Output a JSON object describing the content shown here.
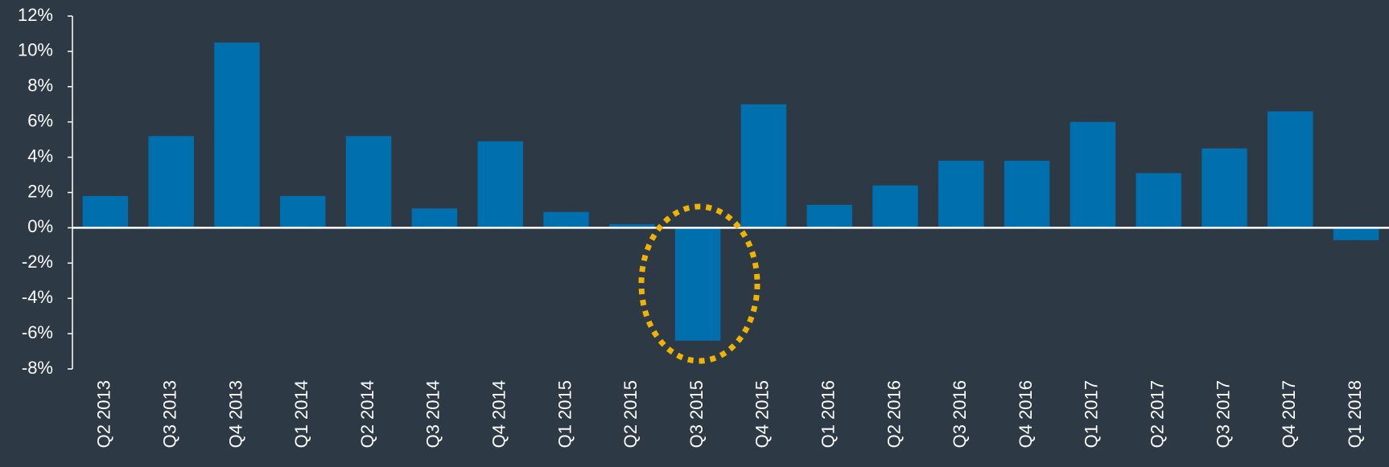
{
  "chart_data": {
    "type": "bar",
    "categories": [
      "Q2 2013",
      "Q3 2013",
      "Q4 2013",
      "Q1 2014",
      "Q2 2014",
      "Q3 2014",
      "Q4 2014",
      "Q1 2015",
      "Q2 2015",
      "Q3 2015",
      "Q4 2015",
      "Q1 2016",
      "Q2 2016",
      "Q3 2016",
      "Q4 2016",
      "Q1 2017",
      "Q2 2017",
      "Q3 2017",
      "Q4 2017",
      "Q1 2018"
    ],
    "values": [
      1.8,
      5.2,
      10.5,
      1.8,
      5.2,
      1.1,
      4.9,
      0.9,
      0.2,
      -6.4,
      7.0,
      1.3,
      2.4,
      3.8,
      3.8,
      6.0,
      3.1,
      4.5,
      6.6,
      -0.7
    ],
    "color": "#006fae",
    "ylim": [
      -8,
      12
    ],
    "yticks": [
      {
        "value": -8,
        "label": "-8%"
      },
      {
        "value": -6,
        "label": "-6%"
      },
      {
        "value": -4,
        "label": "-4%"
      },
      {
        "value": -2,
        "label": "-2%"
      },
      {
        "value": 0,
        "label": "0%"
      },
      {
        "value": 2,
        "label": "2%"
      },
      {
        "value": 4,
        "label": "4%"
      },
      {
        "value": 6,
        "label": "6%"
      },
      {
        "value": 8,
        "label": "8%"
      },
      {
        "value": 10,
        "label": "10%"
      },
      {
        "value": 12,
        "label": "12%"
      }
    ],
    "grid": false
  }
}
